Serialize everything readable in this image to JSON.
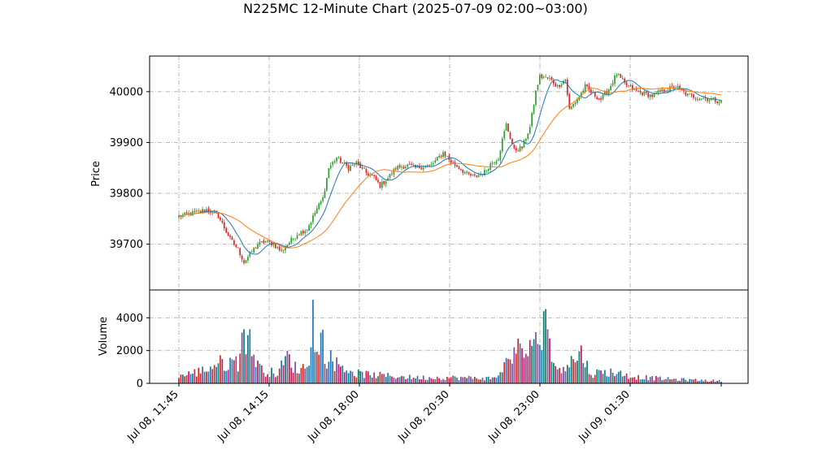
{
  "chart_data": {
    "type": "candlestick",
    "title": "N225MC 12-Minute Chart (2025-07-09 02:00~03:00)",
    "price_panel": {
      "ylabel": "Price",
      "ylim": [
        39610,
        40070
      ],
      "yticks": [
        39700,
        39800,
        39900,
        40000
      ],
      "grid": true
    },
    "volume_panel": {
      "ylabel": "Volume",
      "ylim": [
        0,
        5700
      ],
      "yticks": [
        0,
        2000,
        4000
      ],
      "grid": true
    },
    "x_ticks": [
      "Jul 08, 11:45",
      "Jul 08, 14:15",
      "Jul 08, 18:00",
      "Jul 08, 20:30",
      "Jul 08, 23:00",
      "Jul 09, 01:30",
      ""
    ],
    "colors": {
      "up": "#2ca02c",
      "down": "#d62728",
      "ma_fast": "#1f77b4",
      "ma_slow": "#ff7f0e",
      "vol_colors": [
        "#1f77b4",
        "#0e7c6b",
        "#c2185b",
        "#7b4f9e",
        "#d62728"
      ]
    },
    "price_keypoints": [
      [
        0,
        39755
      ],
      [
        6,
        39760
      ],
      [
        14,
        39768
      ],
      [
        20,
        39755
      ],
      [
        26,
        39710
      ],
      [
        30,
        39690
      ],
      [
        33,
        39665
      ],
      [
        36,
        39680
      ],
      [
        40,
        39700
      ],
      [
        44,
        39705
      ],
      [
        48,
        39700
      ],
      [
        52,
        39685
      ],
      [
        55,
        39700
      ],
      [
        60,
        39720
      ],
      [
        65,
        39730
      ],
      [
        70,
        39770
      ],
      [
        73,
        39790
      ],
      [
        76,
        39850
      ],
      [
        80,
        39870
      ],
      [
        86,
        39850
      ],
      [
        90,
        39860
      ],
      [
        95,
        39840
      ],
      [
        98,
        39835
      ],
      [
        102,
        39815
      ],
      [
        106,
        39830
      ],
      [
        110,
        39850
      ],
      [
        116,
        39855
      ],
      [
        120,
        39850
      ],
      [
        128,
        39855
      ],
      [
        134,
        39880
      ],
      [
        138,
        39862
      ],
      [
        142,
        39850
      ],
      [
        146,
        39838
      ],
      [
        150,
        39832
      ],
      [
        155,
        39842
      ],
      [
        158,
        39858
      ],
      [
        162,
        39870
      ],
      [
        164,
        39905
      ],
      [
        166,
        39935
      ],
      [
        170,
        39885
      ],
      [
        174,
        39890
      ],
      [
        178,
        39930
      ],
      [
        181,
        40000
      ],
      [
        183,
        40030
      ],
      [
        188,
        40025
      ],
      [
        192,
        40010
      ],
      [
        196,
        40025
      ],
      [
        198,
        39965
      ],
      [
        202,
        39985
      ],
      [
        206,
        40010
      ],
      [
        210,
        39995
      ],
      [
        214,
        39985
      ],
      [
        218,
        40005
      ],
      [
        222,
        40035
      ],
      [
        226,
        40015
      ],
      [
        230,
        40005
      ],
      [
        234,
        39998
      ],
      [
        240,
        39992
      ],
      [
        246,
        40003
      ],
      [
        252,
        40010
      ],
      [
        258,
        39993
      ],
      [
        264,
        39988
      ],
      [
        270,
        39985
      ],
      [
        275,
        39980
      ]
    ],
    "volume_keypoints": [
      [
        0,
        450
      ],
      [
        10,
        700
      ],
      [
        20,
        1200
      ],
      [
        30,
        1300
      ],
      [
        33,
        3300
      ],
      [
        38,
        1800
      ],
      [
        42,
        800
      ],
      [
        50,
        600
      ],
      [
        55,
        1600
      ],
      [
        60,
        800
      ],
      [
        64,
        1000
      ],
      [
        67,
        2200
      ],
      [
        68,
        5100
      ],
      [
        70,
        1600
      ],
      [
        72,
        3100
      ],
      [
        75,
        1600
      ],
      [
        80,
        1200
      ],
      [
        90,
        600
      ],
      [
        100,
        500
      ],
      [
        120,
        350
      ],
      [
        140,
        350
      ],
      [
        160,
        300
      ],
      [
        165,
        1000
      ],
      [
        170,
        2200
      ],
      [
        175,
        1700
      ],
      [
        180,
        2700
      ],
      [
        182,
        1900
      ],
      [
        185,
        4400
      ],
      [
        187,
        3300
      ],
      [
        190,
        900
      ],
      [
        200,
        1400
      ],
      [
        205,
        1900
      ],
      [
        208,
        600
      ],
      [
        220,
        700
      ],
      [
        230,
        400
      ],
      [
        250,
        250
      ],
      [
        275,
        150
      ]
    ]
  }
}
